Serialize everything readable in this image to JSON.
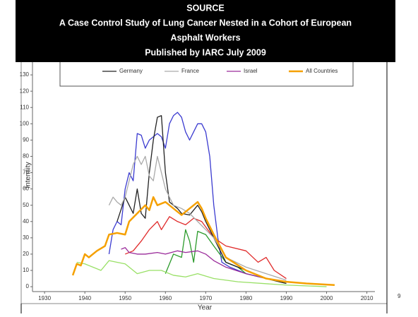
{
  "banner": {
    "lines": [
      "SOURCE",
      "A Case Control Study of Lung Cancer Nested in a Cohort of European",
      "Asphalt Workers",
      "Published by IARC July 2009"
    ]
  },
  "page_number": "9",
  "chart_data": {
    "type": "line",
    "ylabel": "Intensity",
    "xlabel": "Year",
    "xlim": [
      1927,
      2012
    ],
    "xticks": [
      1930,
      1940,
      1950,
      1960,
      1970,
      1980,
      1990,
      2000,
      2010
    ],
    "ylim": [
      -3,
      140
    ],
    "yticks": [
      0,
      10,
      20,
      30,
      40,
      50,
      60,
      70,
      80,
      90,
      100,
      110,
      120,
      130
    ],
    "series": [
      {
        "color": "#3b3bd0",
        "x": [
          1946,
          1947,
          1948,
          1949,
          1950,
          1951,
          1952,
          1953,
          1954,
          1955,
          1956,
          1957,
          1958,
          1959,
          1960,
          1961,
          1962,
          1963,
          1964,
          1965,
          1966,
          1967,
          1968,
          1969,
          1970,
          1971,
          1972,
          1973,
          1974,
          1976,
          1980,
          1985,
          1990
        ],
        "values": [
          20,
          35,
          40,
          38,
          60,
          70,
          65,
          94,
          93,
          85,
          90,
          92,
          94,
          92,
          85,
          100,
          105,
          107,
          104,
          95,
          90,
          95,
          100,
          100,
          95,
          80,
          50,
          30,
          15,
          12,
          8,
          5,
          3
        ]
      },
      {
        "color": "#e02a2a",
        "x": [
          1950,
          1952,
          1954,
          1956,
          1958,
          1959,
          1961,
          1963,
          1965,
          1967,
          1969,
          1972,
          1975,
          1980,
          1983,
          1985,
          1987,
          1990
        ],
        "values": [
          20,
          22,
          28,
          35,
          40,
          35,
          43,
          40,
          38,
          42,
          40,
          30,
          25,
          22,
          15,
          18,
          10,
          5
        ]
      },
      {
        "color": "#2a9a2a",
        "x": [
          1960,
          1962,
          1964,
          1965,
          1966,
          1967,
          1968,
          1970,
          1972,
          1975,
          1978,
          1980,
          1985,
          1990
        ],
        "values": [
          8,
          20,
          18,
          35,
          28,
          15,
          34,
          32,
          25,
          15,
          12,
          8,
          5,
          2
        ]
      },
      {
        "color": "#99e066",
        "x": [
          1938,
          1940,
          1942,
          1944,
          1946,
          1948,
          1950,
          1953,
          1956,
          1959,
          1962,
          1965,
          1968,
          1972,
          1978,
          1990,
          2000
        ],
        "values": [
          15,
          14,
          12,
          10,
          16,
          15,
          14,
          8,
          10,
          10,
          7,
          6,
          8,
          5,
          3,
          1,
          0
        ]
      },
      {
        "name": "Germany",
        "color": "#222222",
        "x": [
          1948,
          1950,
          1951,
          1952,
          1953,
          1954,
          1955,
          1956,
          1957,
          1958,
          1959,
          1960,
          1961,
          1962,
          1963,
          1964,
          1966,
          1968,
          1969,
          1970,
          1972,
          1975,
          1980,
          1985,
          1990
        ],
        "values": [
          40,
          55,
          50,
          45,
          60,
          45,
          42,
          70,
          90,
          104,
          105,
          70,
          52,
          50,
          48,
          45,
          44,
          50,
          46,
          40,
          30,
          15,
          10,
          5,
          2
        ]
      },
      {
        "name": "France",
        "color": "#aaaaaa",
        "x": [
          1946,
          1947,
          1948,
          1949,
          1950,
          1952,
          1953,
          1954,
          1955,
          1956,
          1957,
          1958,
          1959,
          1960,
          1961,
          1962,
          1964,
          1966,
          1968,
          1970,
          1972,
          1975,
          1980,
          1985,
          1990
        ],
        "values": [
          50,
          55,
          52,
          50,
          55,
          75,
          80,
          75,
          80,
          68,
          65,
          80,
          70,
          60,
          55,
          50,
          48,
          45,
          40,
          35,
          30,
          18,
          12,
          8,
          4
        ]
      },
      {
        "name": "Israel",
        "color": "#9a2a9a",
        "x": [
          1949,
          1950,
          1951,
          1953,
          1955,
          1958,
          1960,
          1963,
          1965,
          1968,
          1970,
          1972,
          1975,
          1980,
          1985,
          1990
        ],
        "values": [
          23,
          24,
          21,
          20,
          20,
          21,
          20,
          22,
          21,
          22,
          20,
          16,
          12,
          8,
          5,
          3
        ]
      },
      {
        "name": "All Countries",
        "color": "#f5a000",
        "x": [
          1937,
          1938,
          1939,
          1940,
          1941,
          1943,
          1945,
          1946,
          1948,
          1950,
          1951,
          1953,
          1955,
          1956,
          1957,
          1958,
          1960,
          1962,
          1964,
          1966,
          1968,
          1969,
          1970,
          1972,
          1975,
          1980,
          1985,
          1990,
          1995,
          2002
        ],
        "values": [
          7,
          14,
          13,
          20,
          18,
          22,
          25,
          32,
          33,
          32,
          40,
          45,
          50,
          47,
          55,
          50,
          52,
          48,
          44,
          48,
          52,
          48,
          42,
          32,
          18,
          10,
          5,
          3,
          2,
          1
        ]
      }
    ]
  }
}
